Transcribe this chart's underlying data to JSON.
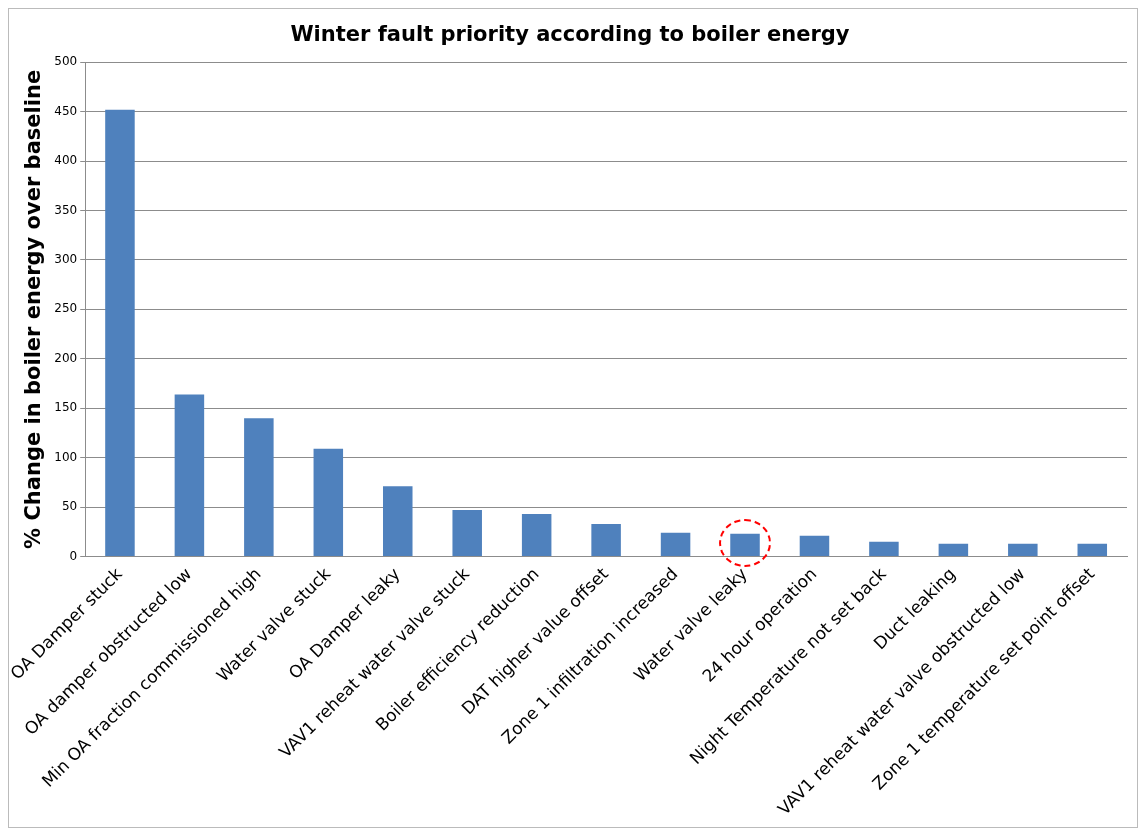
{
  "chart_data": {
    "type": "bar",
    "title": "Winter fault priority according to boiler energy",
    "ylabel": "% Change in boiler energy over baseline",
    "categories": [
      "OA Damper stuck",
      "OA damper obstructed low",
      "Min OA fraction commissioned high",
      "Water valve stuck",
      "OA Damper leaky",
      "VAV1 reheat water valve stuck",
      "Boiler efficiency reduction",
      "DAT higher value offset",
      "Zone 1 infiltration increased",
      "Water valve leaky",
      "24 hour operation",
      "Night Temperature not set back",
      "Duct leaking",
      "VAV1 reheat water valve obstructed low",
      "Zone 1 temperature set point offset"
    ],
    "values": [
      452,
      164,
      140,
      109,
      71,
      47,
      43,
      33,
      24,
      23,
      21,
      15,
      13,
      13,
      13
    ],
    "color": "#4f81bd",
    "ylim": [
      0,
      500
    ],
    "yticks": [
      0,
      50,
      100,
      150,
      200,
      250,
      300,
      350,
      400,
      450,
      500
    ],
    "grid": "y",
    "legend": false
  }
}
